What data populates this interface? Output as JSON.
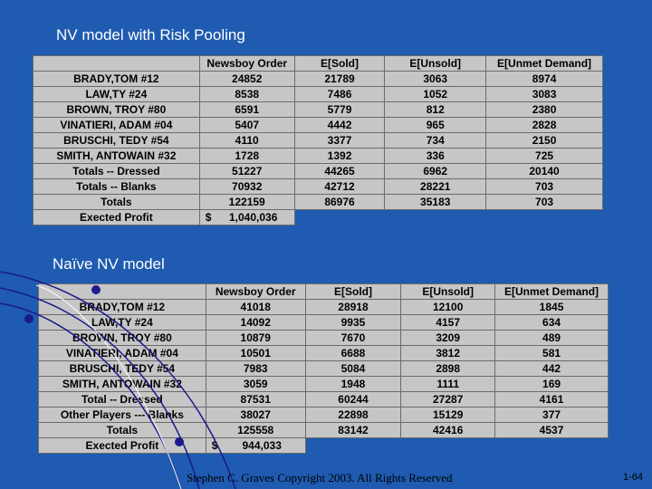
{
  "colors": {
    "background": "#1f5bb0",
    "table_bg": "#c6c6c6",
    "line": "#1a1a8c"
  },
  "tables": [
    {
      "title": "NV model with Risk Pooling",
      "headers": [
        "",
        "Newsboy Order",
        "E[Sold]",
        "E[Unsold]",
        "E[Unmet Demand]"
      ],
      "rows": [
        [
          "BRADY,TOM #12",
          "24852",
          "21789",
          "3063",
          "8974"
        ],
        [
          "LAW,TY #24",
          "8538",
          "7486",
          "1052",
          "3083"
        ],
        [
          "BROWN, TROY #80",
          "6591",
          "5779",
          "812",
          "2380"
        ],
        [
          "VINATIERI, ADAM #04",
          "5407",
          "4442",
          "965",
          "2828"
        ],
        [
          "BRUSCHI, TEDY #54",
          "4110",
          "3377",
          "734",
          "2150"
        ],
        [
          "SMITH, ANTOWAIN #32",
          "1728",
          "1392",
          "336",
          "725"
        ],
        [
          "Totals -- Dressed",
          "51227",
          "44265",
          "6962",
          "20140"
        ],
        [
          "Totals -- Blanks",
          "70932",
          "42712",
          "28221",
          "703"
        ],
        [
          "Totals",
          "122159",
          "86976",
          "35183",
          "703"
        ]
      ],
      "profit_label": "Exected Profit",
      "profit_currency": "$",
      "profit_value": "1,040,036"
    },
    {
      "title": "Naïve NV model",
      "headers": [
        "",
        "Newsboy Order",
        "E[Sold]",
        "E[Unsold]",
        "E[Unmet Demand]"
      ],
      "rows": [
        [
          "BRADY,TOM #12",
          "41018",
          "28918",
          "12100",
          "1845"
        ],
        [
          "LAW,TY #24",
          "14092",
          "9935",
          "4157",
          "634"
        ],
        [
          "BROWN, TROY #80",
          "10879",
          "7670",
          "3209",
          "489"
        ],
        [
          "VINATIERI, ADAM #04",
          "10501",
          "6688",
          "3812",
          "581"
        ],
        [
          "BRUSCHI, TEDY #54",
          "7983",
          "5084",
          "2898",
          "442"
        ],
        [
          "SMITH, ANTOWAIN #32",
          "3059",
          "1948",
          "1111",
          "169"
        ],
        [
          "Total -- Dressed",
          "87531",
          "60244",
          "27287",
          "4161"
        ],
        [
          "Other Players --- Blanks",
          "38027",
          "22898",
          "15129",
          "377"
        ],
        [
          "Totals",
          "125558",
          "83142",
          "42416",
          "4537"
        ]
      ],
      "profit_label": "Exected Profit",
      "profit_currency": "$",
      "profit_value": "944,033"
    }
  ],
  "footer": {
    "copyright": "Stephen C. Graves Copyright 2003. All Rights Reserved",
    "page": "1-64"
  }
}
